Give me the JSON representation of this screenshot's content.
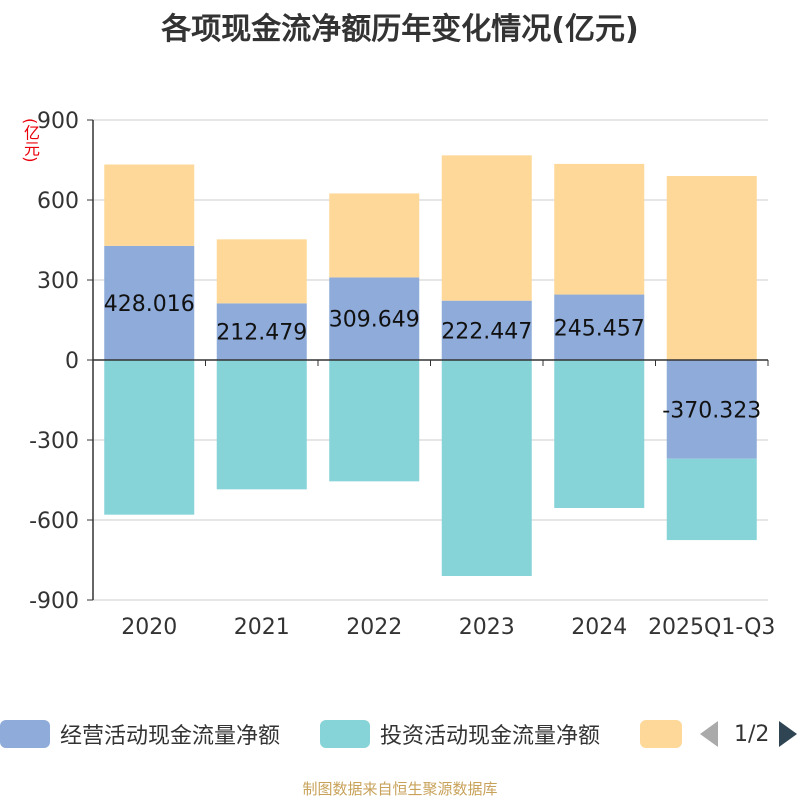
{
  "title": "各项现金流净额历年变化情况(亿元)",
  "unit_label": "(亿元)",
  "footer": "制图数据来自恒生聚源数据库",
  "legend": {
    "items": [
      {
        "label": "经营活动现金流量净额",
        "color": "#8eabd9"
      },
      {
        "label": "投资活动现金流量净额",
        "color": "#86d4d8"
      },
      {
        "label": "",
        "color": "#fed898"
      }
    ],
    "page_indicator": "1/2"
  },
  "chart_data": {
    "type": "bar",
    "stacked": true,
    "categories": [
      "2020",
      "2021",
      "2022",
      "2023",
      "2024",
      "2025Q1-Q3"
    ],
    "ylim": [
      -900,
      900
    ],
    "yticks": [
      900,
      600,
      300,
      0,
      -300,
      -600,
      -900
    ],
    "grid": true,
    "legend_position": "bottom",
    "series": [
      {
        "name": "经营活动现金流量净额",
        "color": "#8eabd9",
        "values": [
          428.016,
          212.479,
          309.649,
          222.447,
          245.457,
          -370.323
        ],
        "labels": [
          "428.016",
          "212.479",
          "309.649",
          "222.447",
          "245.457",
          "-370.323"
        ]
      },
      {
        "name": "投资活动现金流量净额",
        "color": "#86d4d8",
        "values": [
          -580,
          -485,
          -455,
          -810,
          -555,
          -305
        ]
      },
      {
        "name": "",
        "color": "#fed898",
        "values": [
          305,
          240,
          315,
          545,
          490,
          690
        ]
      }
    ]
  }
}
